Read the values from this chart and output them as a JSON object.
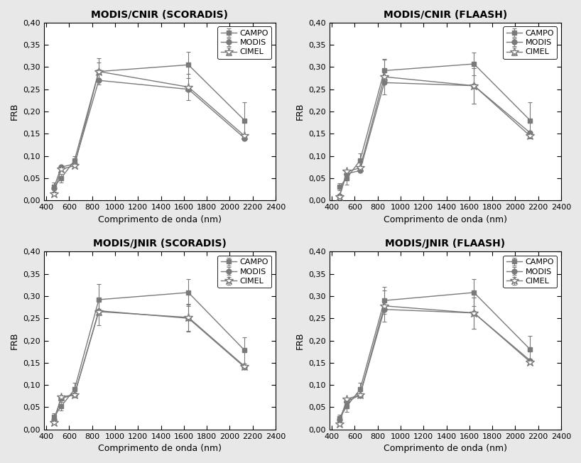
{
  "subplots": [
    {
      "title": "MODIS/CNIR (SCORADIS)",
      "x": [
        466,
        530,
        646,
        858,
        1640,
        2130
      ],
      "campo": [
        0.03,
        0.05,
        0.09,
        0.29,
        0.305,
        0.18
      ],
      "modis": [
        0.028,
        0.075,
        0.082,
        0.27,
        0.25,
        0.14
      ],
      "cimel": [
        0.015,
        0.07,
        0.078,
        0.29,
        0.255,
        0.145
      ],
      "campo_err": [
        0.01,
        0.01,
        0.01,
        0.02,
        0.03,
        0.04
      ],
      "modis_err": [
        0.0,
        0.0,
        0.0,
        0.0,
        0.0,
        0.0
      ],
      "cimel_err": [
        0.0,
        0.0,
        0.0,
        0.03,
        0.03,
        0.0
      ]
    },
    {
      "title": "MODIS/CNIR (FLAASH)",
      "x": [
        466,
        530,
        646,
        858,
        1640,
        2130
      ],
      "campo": [
        0.03,
        0.05,
        0.09,
        0.292,
        0.307,
        0.18
      ],
      "modis": [
        0.01,
        0.06,
        0.067,
        0.265,
        0.258,
        0.152
      ],
      "cimel": [
        0.008,
        0.065,
        0.073,
        0.278,
        0.258,
        0.145
      ],
      "campo_err": [
        0.008,
        0.015,
        0.015,
        0.025,
        0.025,
        0.04
      ],
      "modis_err": [
        0.0,
        0.0,
        0.0,
        0.0,
        0.04,
        0.0
      ],
      "cimel_err": [
        0.0,
        0.0,
        0.0,
        0.04,
        0.04,
        0.0
      ]
    },
    {
      "title": "MODIS/JNIR (SCORADIS)",
      "x": [
        466,
        530,
        646,
        858,
        1640,
        2130
      ],
      "campo": [
        0.028,
        0.052,
        0.09,
        0.292,
        0.308,
        0.178
      ],
      "modis": [
        0.022,
        0.07,
        0.078,
        0.267,
        0.25,
        0.14
      ],
      "cimel": [
        0.015,
        0.073,
        0.078,
        0.265,
        0.252,
        0.142
      ],
      "campo_err": [
        0.008,
        0.01,
        0.015,
        0.035,
        0.03,
        0.03
      ],
      "modis_err": [
        0.0,
        0.0,
        0.0,
        0.0,
        0.03,
        0.0
      ],
      "cimel_err": [
        0.0,
        0.0,
        0.0,
        0.03,
        0.03,
        0.0
      ]
    },
    {
      "title": "MODIS/JNIR (FLAASH)",
      "x": [
        466,
        530,
        646,
        858,
        1640,
        2130
      ],
      "campo": [
        0.025,
        0.052,
        0.09,
        0.29,
        0.308,
        0.18
      ],
      "modis": [
        0.022,
        0.063,
        0.077,
        0.27,
        0.262,
        0.155
      ],
      "cimel": [
        0.012,
        0.068,
        0.078,
        0.278,
        0.262,
        0.152
      ],
      "campo_err": [
        0.008,
        0.012,
        0.015,
        0.03,
        0.03,
        0.03
      ],
      "modis_err": [
        0.0,
        0.0,
        0.0,
        0.0,
        0.035,
        0.0
      ],
      "cimel_err": [
        0.0,
        0.0,
        0.0,
        0.035,
        0.035,
        0.0
      ]
    }
  ],
  "xlabel": "Comprimento de onda (nm)",
  "ylabel": "FRB",
  "xlim": [
    380,
    2400
  ],
  "ylim": [
    0.0,
    0.4
  ],
  "xticks": [
    400,
    600,
    800,
    1000,
    1200,
    1400,
    1600,
    1800,
    2000,
    2200,
    2400
  ],
  "yticks": [
    0.0,
    0.05,
    0.1,
    0.15,
    0.2,
    0.25,
    0.3,
    0.35,
    0.4
  ],
  "legend_labels": [
    "CAMPO",
    "MODIS",
    "CIMEL"
  ],
  "line_color": "#7a7a7a",
  "marker_campo": "s",
  "marker_modis": "o",
  "marker_cimel": "*",
  "markersize_sq": 5,
  "markersize_circ": 5,
  "markersize_star": 9,
  "linewidth": 1.0,
  "title_fontsize": 10,
  "label_fontsize": 9,
  "tick_fontsize": 8,
  "legend_fontsize": 8,
  "fig_facecolor": "#e8e8e8",
  "ax_facecolor": "#ffffff"
}
